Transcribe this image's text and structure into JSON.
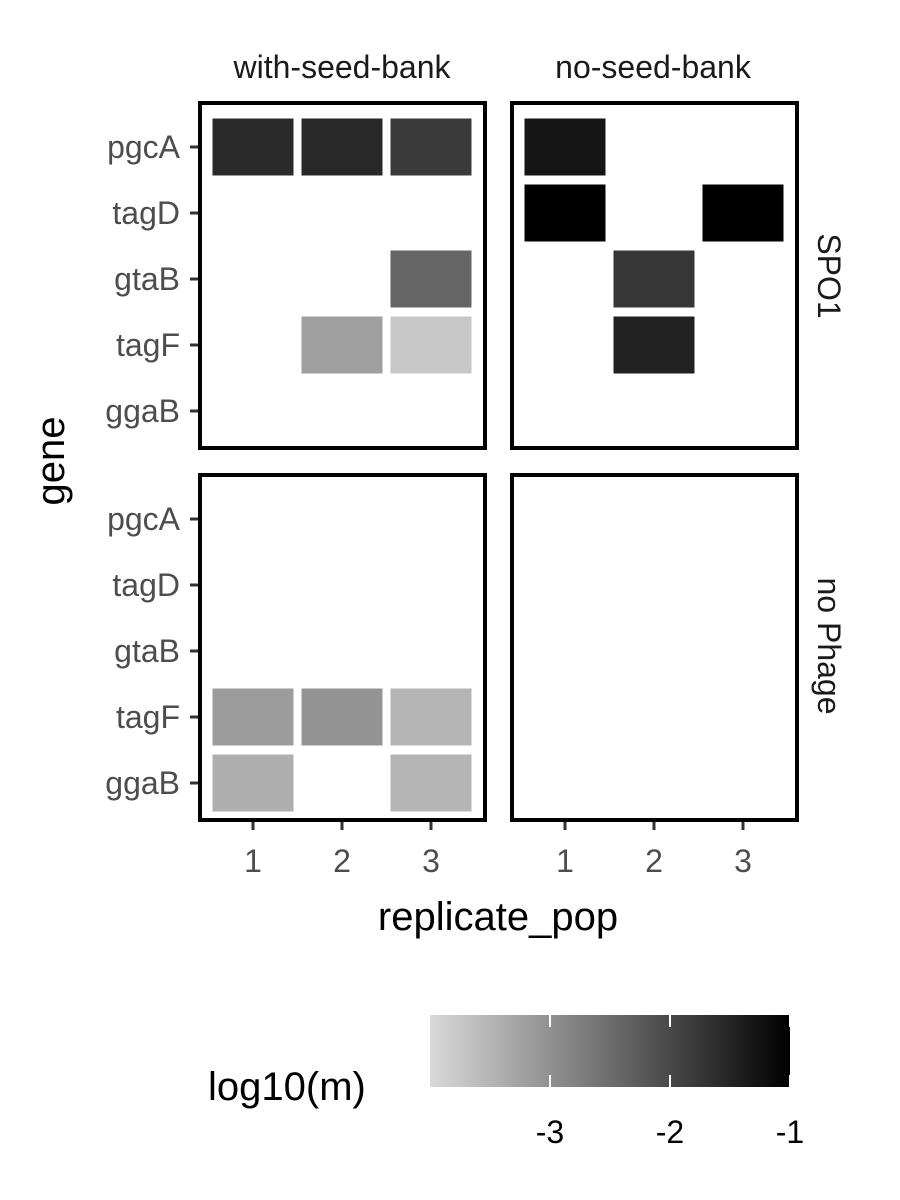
{
  "chart_data": {
    "type": "heatmap",
    "title": "",
    "xlabel": "replicate_pop",
    "ylabel": "gene",
    "x_categories": [
      "1",
      "2",
      "3"
    ],
    "y_categories": [
      "pgcA",
      "tagD",
      "gtaB",
      "tagF",
      "ggaB"
    ],
    "col_facets": [
      "with-seed-bank",
      "no-seed-bank"
    ],
    "row_facets": [
      "SPO1",
      "no Phage"
    ],
    "fill_label": "log10(m)",
    "fill_range": [
      -4,
      -1
    ],
    "legend_ticks": [
      -3,
      -2,
      -1
    ],
    "legend_position": "bottom",
    "grid": false,
    "cells": [
      {
        "row_facet": "SPO1",
        "col_facet": "with-seed-bank",
        "gene": "pgcA",
        "replicate": "1",
        "value": -1.6
      },
      {
        "row_facet": "SPO1",
        "col_facet": "with-seed-bank",
        "gene": "pgcA",
        "replicate": "2",
        "value": -1.55
      },
      {
        "row_facet": "SPO1",
        "col_facet": "with-seed-bank",
        "gene": "pgcA",
        "replicate": "3",
        "value": -1.8
      },
      {
        "row_facet": "SPO1",
        "col_facet": "with-seed-bank",
        "gene": "gtaB",
        "replicate": "3",
        "value": -2.4
      },
      {
        "row_facet": "SPO1",
        "col_facet": "with-seed-bank",
        "gene": "tagF",
        "replicate": "2",
        "value": -3.2
      },
      {
        "row_facet": "SPO1",
        "col_facet": "with-seed-bank",
        "gene": "tagF",
        "replicate": "3",
        "value": -3.75
      },
      {
        "row_facet": "SPO1",
        "col_facet": "no-seed-bank",
        "gene": "pgcA",
        "replicate": "1",
        "value": -1.3
      },
      {
        "row_facet": "SPO1",
        "col_facet": "no-seed-bank",
        "gene": "tagD",
        "replicate": "1",
        "value": -1.0
      },
      {
        "row_facet": "SPO1",
        "col_facet": "no-seed-bank",
        "gene": "tagD",
        "replicate": "3",
        "value": -1.0
      },
      {
        "row_facet": "SPO1",
        "col_facet": "no-seed-bank",
        "gene": "gtaB",
        "replicate": "2",
        "value": -1.75
      },
      {
        "row_facet": "SPO1",
        "col_facet": "no-seed-bank",
        "gene": "tagF",
        "replicate": "2",
        "value": -1.45
      },
      {
        "row_facet": "no Phage",
        "col_facet": "with-seed-bank",
        "gene": "tagF",
        "replicate": "1",
        "value": -3.15
      },
      {
        "row_facet": "no Phage",
        "col_facet": "with-seed-bank",
        "gene": "tagF",
        "replicate": "2",
        "value": -3.05
      },
      {
        "row_facet": "no Phage",
        "col_facet": "with-seed-bank",
        "gene": "tagF",
        "replicate": "3",
        "value": -3.5
      },
      {
        "row_facet": "no Phage",
        "col_facet": "with-seed-bank",
        "gene": "ggaB",
        "replicate": "1",
        "value": -3.4
      },
      {
        "row_facet": "no Phage",
        "col_facet": "with-seed-bank",
        "gene": "ggaB",
        "replicate": "3",
        "value": -3.5
      }
    ],
    "colors": {
      "low": "#d9d9d9",
      "high": "#000000",
      "panel_border": "#000000",
      "background": "#ffffff"
    }
  }
}
